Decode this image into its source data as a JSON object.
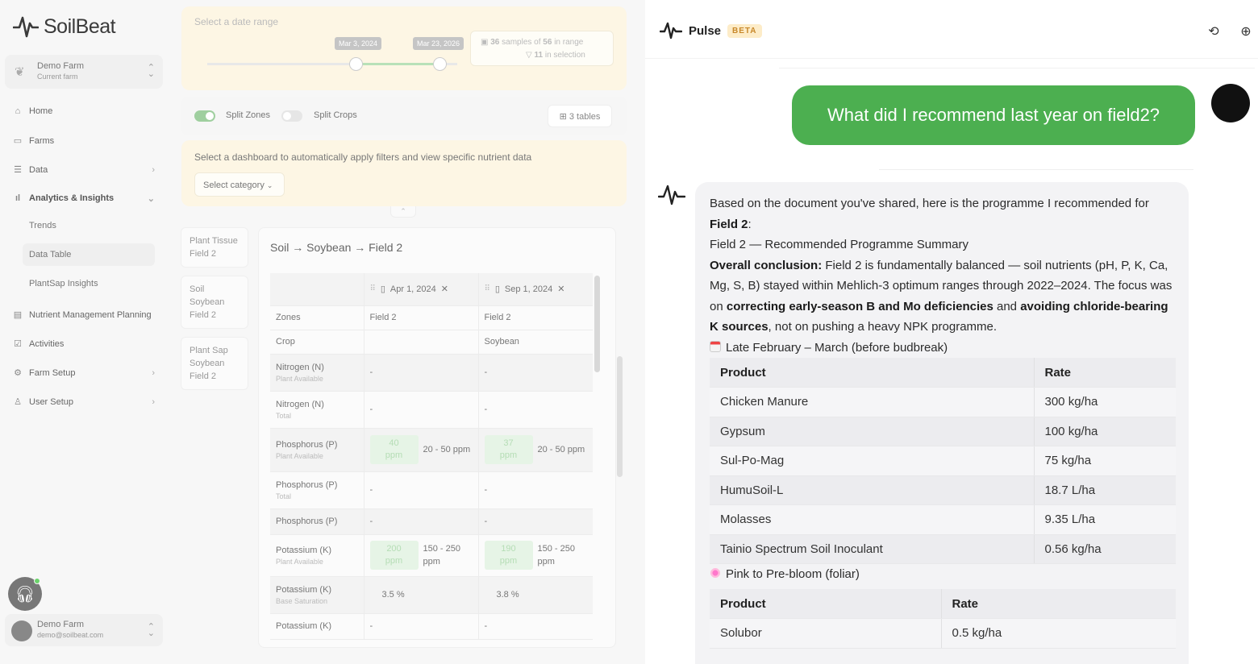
{
  "brand": {
    "name": "SoilBeat"
  },
  "farm_selector": {
    "name": "Demo Farm",
    "subtitle": "Current farm"
  },
  "nav": {
    "home": "Home",
    "farms": "Farms",
    "data": "Data",
    "analytics": "Analytics & Insights",
    "trends": "Trends",
    "data_table": "Data Table",
    "plantsap": "PlantSap Insights",
    "nutrient": "Nutrient Management Planning",
    "activities": "Activities",
    "farm_setup": "Farm Setup",
    "user_setup": "User Setup"
  },
  "user": {
    "name": "Demo Farm",
    "email": "demo@soilbeat.com"
  },
  "date_range": {
    "title": "Select a date range",
    "start": "Mar 3, 2024",
    "end": "Mar 23, 2026",
    "samples_count": "36",
    "samples_mid": "samples of",
    "samples_total": "56",
    "samples_suffix": "in range",
    "selection_count": "11",
    "selection_suffix": "in selection"
  },
  "toggles": {
    "split_zones": "Split Zones",
    "split_crops": "Split Crops",
    "tables": "3 tables"
  },
  "dashboard": {
    "prompt": "Select a dashboard to automatically apply filters and view specific nutrient data",
    "category": "Select category"
  },
  "mini_cards": [
    {
      "l1": "Plant Tissue",
      "l2": "Field 2",
      "l3": ""
    },
    {
      "l1": "Soil",
      "l2": "Soybean",
      "l3": "Field 2"
    },
    {
      "l1": "Plant Sap",
      "l2": "Soybean",
      "l3": "Field 2"
    }
  ],
  "breadcrumb": "Soil → Soybean → Field 2",
  "data_table": {
    "col1": "Apr 1, 2024",
    "col2": "Sep 1, 2024",
    "rows": {
      "zones": {
        "label": "Zones",
        "a": "Field 2",
        "b": "Field 2"
      },
      "crop": {
        "label": "Crop",
        "a": "",
        "b": "Soybean"
      },
      "n_avail": {
        "label": "Nitrogen (N)",
        "sub": "Plant Available",
        "a": "-",
        "b": "-"
      },
      "n_total": {
        "label": "Nitrogen (N)",
        "sub": "Total",
        "a": "-",
        "b": "-"
      },
      "p_avail": {
        "label": "Phosphorus (P)",
        "sub": "Plant Available",
        "a_val": "40",
        "a_unit": "ppm",
        "a_range": "20 - 50 ppm",
        "b_val": "37",
        "b_unit": "ppm",
        "b_range": "20 - 50 ppm"
      },
      "p_total": {
        "label": "Phosphorus (P)",
        "sub": "Total",
        "a": "-",
        "b": "-"
      },
      "p_plain": {
        "label": "Phosphorus (P)",
        "a": "-",
        "b": "-"
      },
      "k_avail": {
        "label": "Potassium (K)",
        "sub": "Plant Available",
        "a_val": "200",
        "a_unit": "ppm",
        "a_range1": "150 - 250",
        "a_range2": "ppm",
        "b_val": "190",
        "b_unit": "ppm",
        "b_range1": "150 - 250",
        "b_range2": "ppm"
      },
      "k_base": {
        "label": "Potassium (K)",
        "sub": "Base Saturation",
        "a": "3.5 %",
        "b": "3.8 %"
      },
      "k_plain": {
        "label": "Potassium (K)",
        "a": "-",
        "b": "-"
      }
    }
  },
  "chat": {
    "title": "Pulse",
    "badge": "BETA",
    "user_message": "What did I recommend last year on field2?",
    "intro_a": "Based on the document you've shared, here is the programme I recommended for",
    "intro_b": "Field 2",
    "intro_c": ":",
    "summary_title": "Field 2 — Recommended Programme Summary",
    "conclusion_label": "Overall conclusion:",
    "conclusion_text": "Field 2 is fundamentally balanced — soil nutrients (pH, P, K, Ca, Mg, S, B) stayed within Mehlich-3 optimum ranges through 2022–2024. The focus was on",
    "bold1": "correcting early-season B and Mo deficiencies",
    "mid": "and",
    "bold2": "avoiding chloride-bearing K sources",
    "tail": ", not on pushing a heavy NPK programme.",
    "section1": "Late February – March (before budbreak)",
    "table1": {
      "h_product": "Product",
      "h_rate": "Rate",
      "rows": [
        {
          "p": "Chicken Manure",
          "r": "300 kg/ha"
        },
        {
          "p": "Gypsum",
          "r": "100 kg/ha"
        },
        {
          "p": "Sul-Po-Mag",
          "r": "75 kg/ha"
        },
        {
          "p": "HumuSoil-L",
          "r": "18.7 L/ha"
        },
        {
          "p": "Molasses",
          "r": "9.35 L/ha"
        },
        {
          "p": "Tainio Spectrum Soil Inoculant",
          "r": "0.56 kg/ha"
        }
      ]
    },
    "section2": "Pink to Pre-bloom (foliar)",
    "table2": {
      "h_product": "Product",
      "h_rate": "Rate",
      "rows": [
        {
          "p": "Solubor",
          "r": "0.5 kg/ha"
        }
      ]
    }
  },
  "colors": {
    "accent_green": "#4caf50",
    "badge_bg": "#fdecc8",
    "badge_text": "#c8882a"
  },
  "icons": [
    "soilbeat-logo-icon",
    "pulse-logo-icon",
    "history-icon",
    "new-chat-icon",
    "headset-icon"
  ]
}
